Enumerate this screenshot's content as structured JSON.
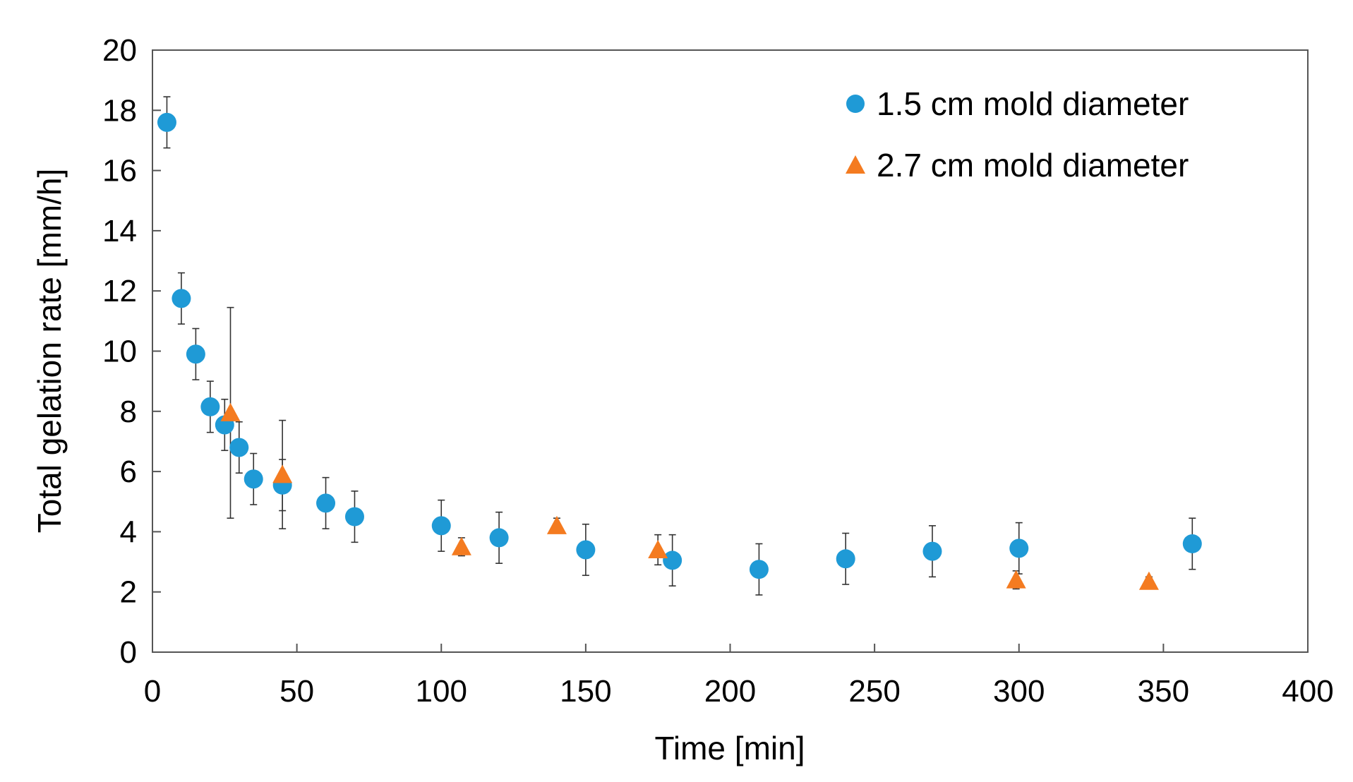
{
  "chart_data": {
    "type": "scatter",
    "title": "",
    "xlabel": "Time [min]",
    "ylabel": "Total gelation rate [mm/h]",
    "xlim": [
      0,
      400
    ],
    "ylim": [
      0,
      20
    ],
    "xticks": [
      0,
      50,
      100,
      150,
      200,
      250,
      300,
      350,
      400
    ],
    "yticks": [
      0,
      2,
      4,
      6,
      8,
      10,
      12,
      14,
      16,
      18,
      20
    ],
    "grid": false,
    "legend_position": "top-right",
    "series": [
      {
        "name": "1.5 cm mold diameter",
        "marker": "circle",
        "color": "#1f9ad6",
        "points": [
          {
            "x": 5,
            "y": 17.6,
            "err": 0.85
          },
          {
            "x": 10,
            "y": 11.75,
            "err": 0.85
          },
          {
            "x": 15,
            "y": 9.9,
            "err": 0.85
          },
          {
            "x": 20,
            "y": 8.15,
            "err": 0.85
          },
          {
            "x": 25,
            "y": 7.55,
            "err": 0.85
          },
          {
            "x": 30,
            "y": 6.8,
            "err": 0.85
          },
          {
            "x": 35,
            "y": 5.75,
            "err": 0.85
          },
          {
            "x": 45,
            "y": 5.55,
            "err": 0.85
          },
          {
            "x": 60,
            "y": 4.95,
            "err": 0.85
          },
          {
            "x": 70,
            "y": 4.5,
            "err": 0.85
          },
          {
            "x": 100,
            "y": 4.2,
            "err": 0.85
          },
          {
            "x": 120,
            "y": 3.8,
            "err": 0.85
          },
          {
            "x": 150,
            "y": 3.4,
            "err": 0.85
          },
          {
            "x": 180,
            "y": 3.05,
            "err": 0.85
          },
          {
            "x": 210,
            "y": 2.75,
            "err": 0.85
          },
          {
            "x": 240,
            "y": 3.1,
            "err": 0.85
          },
          {
            "x": 270,
            "y": 3.35,
            "err": 0.85
          },
          {
            "x": 300,
            "y": 3.45,
            "err": 0.85
          },
          {
            "x": 360,
            "y": 3.6,
            "err": 0.85
          }
        ]
      },
      {
        "name": "2.7 cm mold diameter",
        "marker": "triangle",
        "color": "#f47b20",
        "points": [
          {
            "x": 27,
            "y": 7.95,
            "err": 3.5
          },
          {
            "x": 45,
            "y": 5.9,
            "err": 1.8
          },
          {
            "x": 107,
            "y": 3.5,
            "err": 0.3
          },
          {
            "x": 140,
            "y": 4.2,
            "err": 0.25
          },
          {
            "x": 175,
            "y": 3.4,
            "err": 0.5
          },
          {
            "x": 299,
            "y": 2.4,
            "err": 0.3
          },
          {
            "x": 345,
            "y": 2.35,
            "err": 0.15
          }
        ]
      }
    ]
  }
}
